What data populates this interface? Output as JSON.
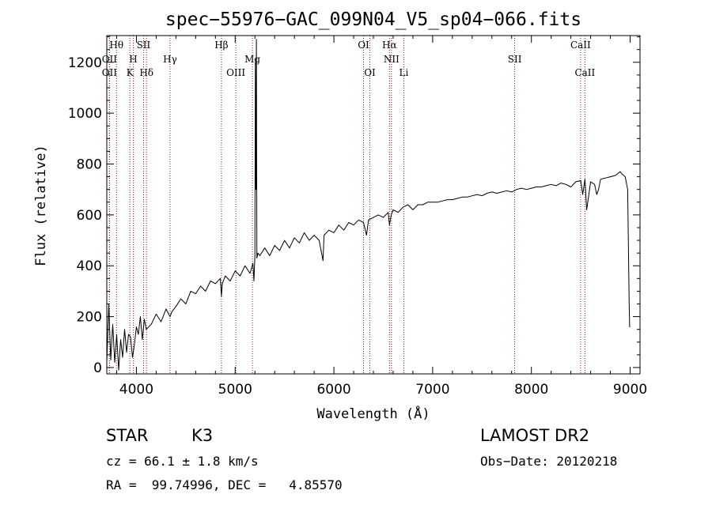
{
  "chart_data": {
    "type": "line",
    "title": "spec−55976−GAC_099N04_V5_sp04−066.fits",
    "xlabel": "Wavelength (Å)",
    "ylabel": "Flux (relative)",
    "xlim": [
      3700,
      9100
    ],
    "ylim": [
      -25,
      1305
    ],
    "x_ticks": [
      4000,
      5000,
      6000,
      7000,
      8000,
      9000
    ],
    "y_ticks": [
      0,
      200,
      400,
      600,
      800,
      1000,
      1200
    ],
    "x_tick_labels": [
      "4000",
      "5000",
      "6000",
      "7000",
      "8000",
      "9000"
    ],
    "y_tick_labels": [
      "0",
      "200",
      "400",
      "600",
      "800",
      "1000",
      "1200"
    ],
    "grid": false,
    "series": [
      {
        "color": "#000000",
        "x": [
          3700,
          3720,
          3740,
          3760,
          3780,
          3800,
          3820,
          3840,
          3860,
          3880,
          3900,
          3920,
          3940,
          3960,
          3980,
          4000,
          4020,
          4040,
          4060,
          4080,
          4100,
          4150,
          4200,
          4250,
          4300,
          4340,
          4360,
          4400,
          4450,
          4500,
          4550,
          4600,
          4650,
          4700,
          4750,
          4800,
          4850,
          4861,
          4870,
          4900,
          4950,
          5000,
          5050,
          5100,
          5150,
          5180,
          5190,
          5200,
          5205,
          5210,
          5215,
          5220,
          5230,
          5250,
          5300,
          5350,
          5400,
          5450,
          5500,
          5550,
          5600,
          5650,
          5700,
          5750,
          5800,
          5850,
          5875,
          5890,
          5900,
          5950,
          6000,
          6050,
          6100,
          6150,
          6200,
          6250,
          6300,
          6330,
          6350,
          6400,
          6450,
          6500,
          6550,
          6563,
          6580,
          6600,
          6650,
          6700,
          6750,
          6800,
          6850,
          6900,
          6950,
          7000,
          7050,
          7100,
          7150,
          7200,
          7250,
          7300,
          7350,
          7400,
          7450,
          7500,
          7550,
          7600,
          7650,
          7700,
          7750,
          7800,
          7850,
          7900,
          7950,
          8000,
          8050,
          8100,
          8150,
          8200,
          8250,
          8300,
          8350,
          8400,
          8450,
          8500,
          8520,
          8542,
          8560,
          8600,
          8640,
          8662,
          8680,
          8700,
          8750,
          8800,
          8850,
          8900,
          8920,
          8950,
          8975,
          8990,
          8995,
          9000
        ],
        "y": [
          20,
          250,
          30,
          170,
          20,
          130,
          -10,
          110,
          40,
          150,
          60,
          130,
          120,
          40,
          90,
          160,
          130,
          200,
          110,
          190,
          150,
          170,
          210,
          180,
          230,
          200,
          220,
          240,
          270,
          250,
          300,
          290,
          320,
          300,
          340,
          330,
          350,
          280,
          330,
          360,
          340,
          380,
          360,
          400,
          370,
          410,
          340,
          440,
          1200,
          700,
          1290,
          430,
          450,
          440,
          470,
          440,
          480,
          460,
          500,
          470,
          510,
          490,
          530,
          500,
          520,
          500,
          450,
          420,
          520,
          540,
          530,
          560,
          540,
          570,
          560,
          580,
          570,
          520,
          580,
          590,
          600,
          590,
          610,
          560,
          600,
          620,
          610,
          630,
          640,
          620,
          640,
          640,
          650,
          650,
          650,
          655,
          660,
          660,
          665,
          670,
          670,
          675,
          680,
          675,
          685,
          690,
          685,
          690,
          695,
          690,
          700,
          705,
          700,
          705,
          710,
          710,
          715,
          720,
          715,
          725,
          720,
          710,
          730,
          735,
          680,
          740,
          620,
          730,
          720,
          680,
          700,
          740,
          745,
          750,
          755,
          770,
          760,
          750,
          700,
          250,
          160,
          160
        ]
      }
    ],
    "lines": [
      {
        "label": "Hθ",
        "x": 3798,
        "row": 0
      },
      {
        "label": "OII",
        "x": 3727,
        "row": 1
      },
      {
        "label": "OII",
        "x": 3727,
        "row": 2
      },
      {
        "label": "H",
        "x": 3968,
        "row": 1
      },
      {
        "label": "K",
        "x": 3934,
        "row": 2
      },
      {
        "label": "SII",
        "x": 4072,
        "row": 0
      },
      {
        "label": "Hδ",
        "x": 4102,
        "row": 2
      },
      {
        "label": "Hγ",
        "x": 4341,
        "row": 1
      },
      {
        "label": "Hβ",
        "x": 4861,
        "row": 0
      },
      {
        "label": "OIII",
        "x": 5007,
        "row": 2
      },
      {
        "label": "Mg",
        "x": 5175,
        "row": 1
      },
      {
        "label": "OI",
        "x": 6300,
        "row": 0
      },
      {
        "label": "OI",
        "x": 6364,
        "row": 2
      },
      {
        "label": "Hα",
        "x": 6563,
        "row": 0
      },
      {
        "label": "NII",
        "x": 6583,
        "row": 1
      },
      {
        "label": "Li",
        "x": 6708,
        "row": 2
      },
      {
        "label": "SII",
        "x": 7831,
        "row": 1
      },
      {
        "label": "CaII",
        "x": 8498,
        "row": 0
      },
      {
        "label": "CaII",
        "x": 8542,
        "row": 2
      }
    ],
    "line_color": "#8b1a1a"
  },
  "info": {
    "class_label": "STAR",
    "subclass_label": "K3",
    "survey_label": "LAMOST DR2",
    "cz_text": "cz = 66.1 ± 1.8 km/s",
    "obs_date_text": "Obs−Date: 20120218",
    "coords_text": "RA =  99.74996, DEC =   4.85570"
  }
}
